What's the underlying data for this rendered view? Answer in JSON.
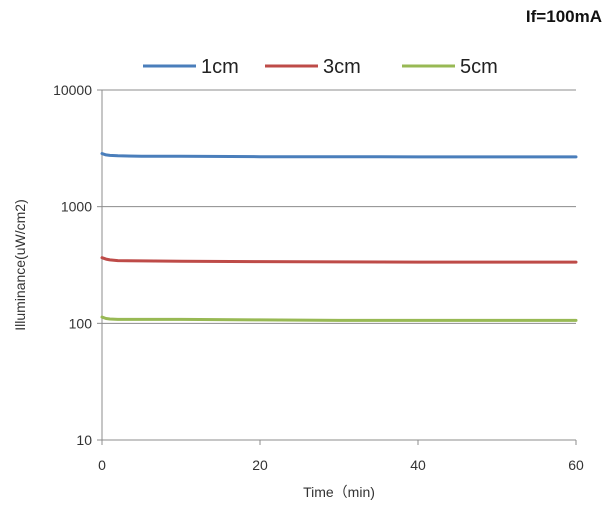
{
  "annotation": "If=100mA",
  "chart_data": {
    "type": "line",
    "title": "",
    "xlabel": "Time（min)",
    "ylabel": "Illuminance(uW/cm2)",
    "xlim": [
      0,
      60
    ],
    "ylim": [
      10,
      10000
    ],
    "yscale": "log",
    "xticks": [
      0,
      20,
      40,
      60
    ],
    "xtick_labels": [
      "0",
      "20",
      "40",
      "60"
    ],
    "yticks": [
      10,
      100,
      1000,
      10000
    ],
    "ytick_labels": [
      "10",
      "100",
      "1000",
      "10000"
    ],
    "grid": "horizontal",
    "legend_position": "top",
    "x": [
      0,
      0.5,
      1,
      2,
      5,
      10,
      20,
      30,
      40,
      50,
      60
    ],
    "series": [
      {
        "name": "1cm",
        "color": "#4a7ebb",
        "values": [
          2850,
          2780,
          2750,
          2730,
          2710,
          2700,
          2680,
          2680,
          2670,
          2670,
          2670
        ]
      },
      {
        "name": "3cm",
        "color": "#be4b48",
        "values": [
          365,
          355,
          350,
          345,
          343,
          341,
          338,
          336,
          335,
          335,
          335
        ]
      },
      {
        "name": "5cm",
        "color": "#98b954",
        "values": [
          113,
          110,
          109,
          108,
          108,
          108,
          107,
          106,
          106,
          106,
          106
        ]
      }
    ]
  }
}
